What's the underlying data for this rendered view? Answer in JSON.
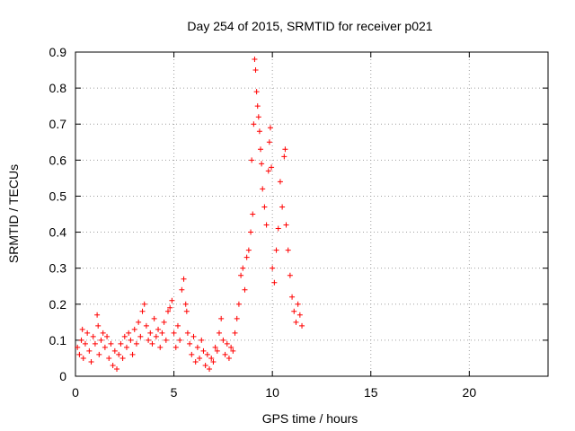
{
  "chart_data": {
    "type": "scatter",
    "title": "Day 254 of 2015, SRMTID for receiver p021",
    "xlabel": "GPS time / hours",
    "ylabel": "SRMTID / TECUs",
    "xlim": [
      0,
      24
    ],
    "ylim": [
      0,
      0.9
    ],
    "xticks": [
      0,
      5,
      10,
      15,
      20
    ],
    "yticks": [
      0,
      0.1,
      0.2,
      0.3,
      0.4,
      0.5,
      0.6,
      0.7,
      0.8,
      0.9
    ],
    "grid": true,
    "marker": "plus",
    "color": "#ff0000",
    "series": [
      {
        "name": "SRMTID",
        "points": [
          [
            0.1,
            0.08
          ],
          [
            0.2,
            0.06
          ],
          [
            0.3,
            0.1
          ],
          [
            0.35,
            0.13
          ],
          [
            0.4,
            0.05
          ],
          [
            0.5,
            0.09
          ],
          [
            0.6,
            0.12
          ],
          [
            0.7,
            0.07
          ],
          [
            0.8,
            0.04
          ],
          [
            0.9,
            0.11
          ],
          [
            1.0,
            0.09
          ],
          [
            1.1,
            0.17
          ],
          [
            1.15,
            0.14
          ],
          [
            1.2,
            0.06
          ],
          [
            1.3,
            0.1
          ],
          [
            1.4,
            0.12
          ],
          [
            1.5,
            0.08
          ],
          [
            1.6,
            0.11
          ],
          [
            1.7,
            0.05
          ],
          [
            1.8,
            0.09
          ],
          [
            1.9,
            0.03
          ],
          [
            2.0,
            0.07
          ],
          [
            2.1,
            0.02
          ],
          [
            2.2,
            0.06
          ],
          [
            2.3,
            0.09
          ],
          [
            2.4,
            0.05
          ],
          [
            2.5,
            0.11
          ],
          [
            2.6,
            0.08
          ],
          [
            2.7,
            0.12
          ],
          [
            2.8,
            0.1
          ],
          [
            2.9,
            0.06
          ],
          [
            3.0,
            0.13
          ],
          [
            3.1,
            0.09
          ],
          [
            3.2,
            0.15
          ],
          [
            3.3,
            0.11
          ],
          [
            3.4,
            0.18
          ],
          [
            3.5,
            0.2
          ],
          [
            3.6,
            0.14
          ],
          [
            3.7,
            0.1
          ],
          [
            3.8,
            0.12
          ],
          [
            3.9,
            0.09
          ],
          [
            4.0,
            0.16
          ],
          [
            4.1,
            0.11
          ],
          [
            4.2,
            0.13
          ],
          [
            4.3,
            0.08
          ],
          [
            4.4,
            0.12
          ],
          [
            4.5,
            0.15
          ],
          [
            4.6,
            0.1
          ],
          [
            4.7,
            0.18
          ],
          [
            4.8,
            0.19
          ],
          [
            4.9,
            0.21
          ],
          [
            5.0,
            0.12
          ],
          [
            5.1,
            0.08
          ],
          [
            5.2,
            0.14
          ],
          [
            5.3,
            0.1
          ],
          [
            5.4,
            0.24
          ],
          [
            5.5,
            0.27
          ],
          [
            5.6,
            0.2
          ],
          [
            5.65,
            0.18
          ],
          [
            5.7,
            0.12
          ],
          [
            5.8,
            0.09
          ],
          [
            5.9,
            0.06
          ],
          [
            6.0,
            0.11
          ],
          [
            6.1,
            0.04
          ],
          [
            6.2,
            0.08
          ],
          [
            6.3,
            0.05
          ],
          [
            6.4,
            0.1
          ],
          [
            6.5,
            0.07
          ],
          [
            6.6,
            0.03
          ],
          [
            6.7,
            0.06
          ],
          [
            6.8,
            0.02
          ],
          [
            6.9,
            0.05
          ],
          [
            7.0,
            0.04
          ],
          [
            7.1,
            0.08
          ],
          [
            7.2,
            0.07
          ],
          [
            7.3,
            0.12
          ],
          [
            7.4,
            0.16
          ],
          [
            7.5,
            0.1
          ],
          [
            7.6,
            0.06
          ],
          [
            7.7,
            0.09
          ],
          [
            7.8,
            0.05
          ],
          [
            7.9,
            0.08
          ],
          [
            8.0,
            0.07
          ],
          [
            8.1,
            0.12
          ],
          [
            8.2,
            0.16
          ],
          [
            8.3,
            0.2
          ],
          [
            8.4,
            0.28
          ],
          [
            8.5,
            0.3
          ],
          [
            8.6,
            0.24
          ],
          [
            8.7,
            0.33
          ],
          [
            8.8,
            0.35
          ],
          [
            8.9,
            0.4
          ],
          [
            8.95,
            0.6
          ],
          [
            9.0,
            0.45
          ],
          [
            9.05,
            0.7
          ],
          [
            9.1,
            0.88
          ],
          [
            9.15,
            0.85
          ],
          [
            9.2,
            0.79
          ],
          [
            9.25,
            0.75
          ],
          [
            9.3,
            0.72
          ],
          [
            9.35,
            0.68
          ],
          [
            9.4,
            0.63
          ],
          [
            9.45,
            0.59
          ],
          [
            9.5,
            0.52
          ],
          [
            9.6,
            0.47
          ],
          [
            9.7,
            0.42
          ],
          [
            9.8,
            0.57
          ],
          [
            9.85,
            0.65
          ],
          [
            9.9,
            0.69
          ],
          [
            9.95,
            0.58
          ],
          [
            10.0,
            0.3
          ],
          [
            10.1,
            0.26
          ],
          [
            10.2,
            0.35
          ],
          [
            10.3,
            0.41
          ],
          [
            10.4,
            0.54
          ],
          [
            10.5,
            0.47
          ],
          [
            10.6,
            0.61
          ],
          [
            10.65,
            0.63
          ],
          [
            10.7,
            0.42
          ],
          [
            10.8,
            0.35
          ],
          [
            10.9,
            0.28
          ],
          [
            11.0,
            0.22
          ],
          [
            11.1,
            0.18
          ],
          [
            11.2,
            0.15
          ],
          [
            11.3,
            0.2
          ],
          [
            11.4,
            0.17
          ],
          [
            11.5,
            0.14
          ]
        ]
      }
    ]
  }
}
